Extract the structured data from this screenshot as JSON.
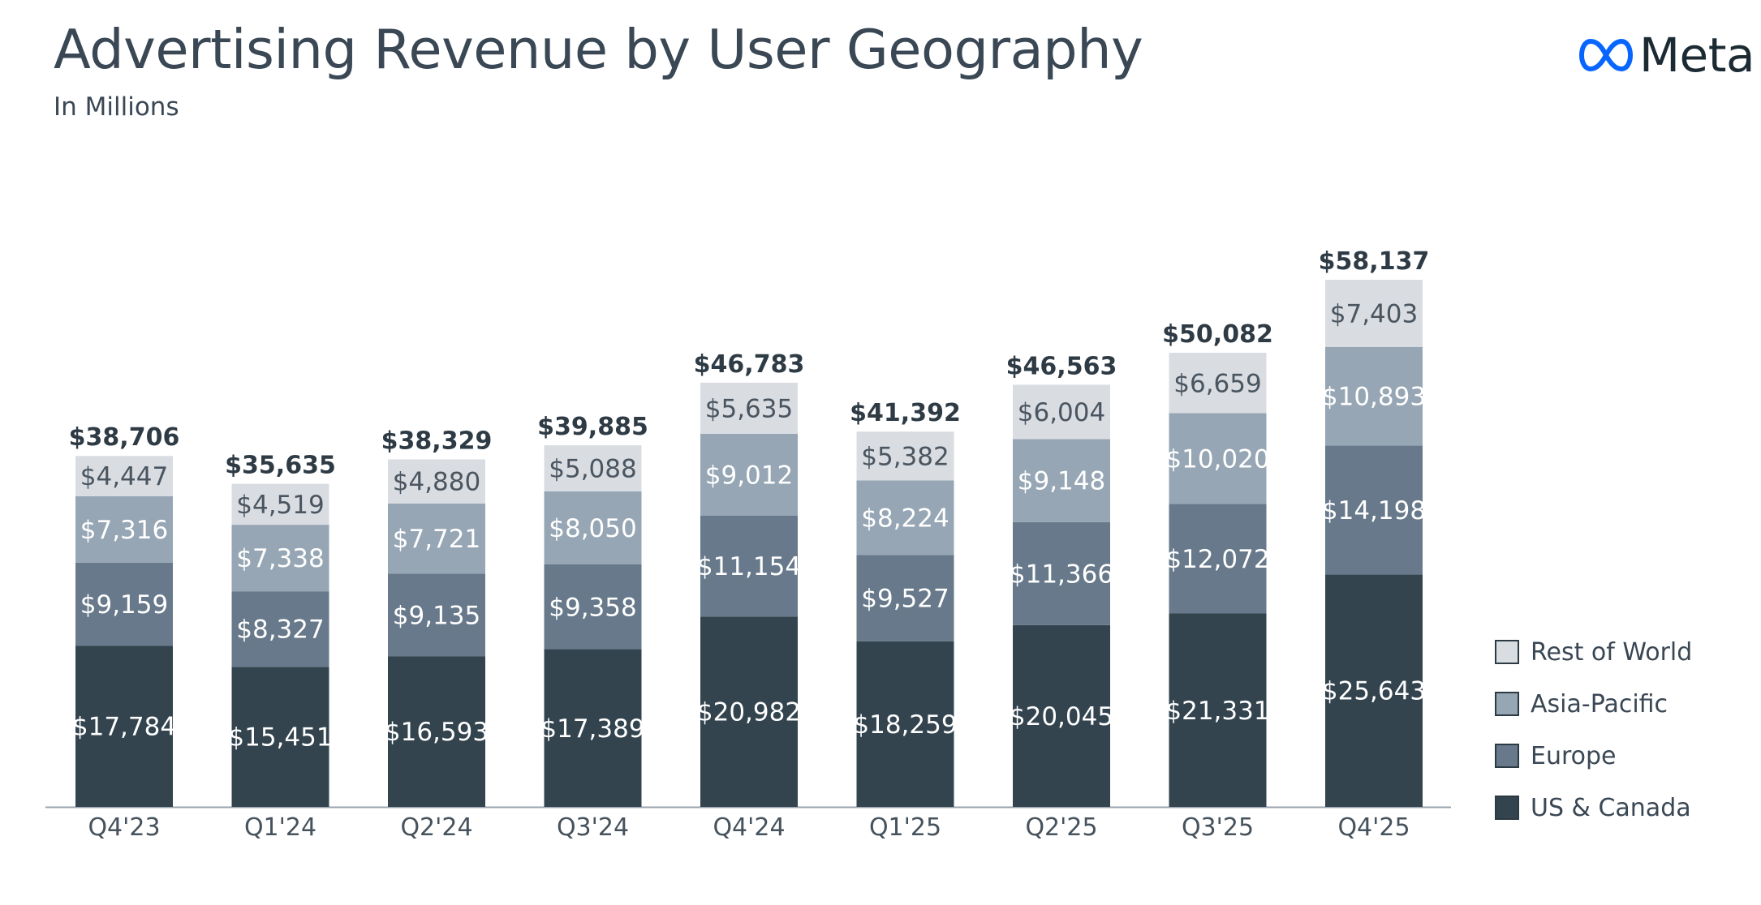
{
  "header": {
    "title": "Advertising Revenue by User Geography",
    "subtitle": "In Millions"
  },
  "logo": {
    "text": "Meta",
    "icon": "meta-infinity-icon",
    "icon_color": "#0866ff"
  },
  "colors": {
    "us_canada": "#33444f",
    "europe": "#67798a",
    "asia_pacific": "#96a6b4",
    "rest_of_world": "#d9dde2",
    "axis": "#9aa4ad",
    "tick_text": "#46525c",
    "total_text": "#2e3b45",
    "light_label": "#ffffff",
    "dark_label": "#4a5560"
  },
  "chart_data": {
    "type": "bar",
    "stacked": true,
    "categories": [
      "Q4'23",
      "Q1'24",
      "Q2'24",
      "Q3'24",
      "Q4'24",
      "Q1'25",
      "Q2'25",
      "Q3'25",
      "Q4'25"
    ],
    "series": [
      {
        "name": "US & Canada",
        "values": [
          17784,
          15451,
          16593,
          17389,
          20982,
          18259,
          20045,
          21331,
          25643
        ],
        "color": "#33444f"
      },
      {
        "name": "Europe",
        "values": [
          9159,
          8327,
          9135,
          9358,
          11154,
          9527,
          11366,
          12072,
          14198
        ],
        "color": "#67798a"
      },
      {
        "name": "Asia-Pacific",
        "values": [
          7316,
          7338,
          7721,
          8050,
          9012,
          8224,
          9148,
          10020,
          10893
        ],
        "color": "#96a6b4"
      },
      {
        "name": "Rest of World",
        "values": [
          4447,
          4519,
          4880,
          5088,
          5635,
          5382,
          6004,
          6659,
          7403
        ],
        "color": "#d9dde2"
      }
    ],
    "totals": [
      38706,
      35635,
      38329,
      39885,
      46783,
      41392,
      46563,
      50082,
      58137
    ],
    "segment_labels": [
      [
        "$17,784",
        "$15,451",
        "$16,593",
        "$17,389",
        "$20,982",
        "$18,259",
        "$20,045",
        "$21,331",
        "$25,643"
      ],
      [
        "$9,159",
        "$8,327",
        "$9,135",
        "$9,358",
        "$11,154",
        "$9,527",
        "$11,366",
        "$12,072",
        "$14,198"
      ],
      [
        "$7,316",
        "$7,338",
        "$7,721",
        "$8,050",
        "$9,012",
        "$8,224",
        "$9,148",
        "$10,020",
        "$10,893"
      ],
      [
        "$4,447",
        "$4,519",
        "$4,880",
        "$5,088",
        "$5,635",
        "$5,382",
        "$6,004",
        "$6,659",
        "$7,403"
      ]
    ],
    "total_labels": [
      "$38,706",
      "$35,635",
      "$38,329",
      "$39,885",
      "$46,783",
      "$41,392",
      "$46,563",
      "$50,082",
      "$58,137"
    ],
    "ylim": [
      0,
      58137
    ],
    "grid": false,
    "legend_position": "right",
    "xlabel": "",
    "ylabel": ""
  },
  "legend": {
    "items": [
      {
        "label": "Rest of World",
        "color": "#d9dde2"
      },
      {
        "label": "Asia-Pacific",
        "color": "#96a6b4"
      },
      {
        "label": "Europe",
        "color": "#67798a"
      },
      {
        "label": "US & Canada",
        "color": "#33444f"
      }
    ]
  }
}
